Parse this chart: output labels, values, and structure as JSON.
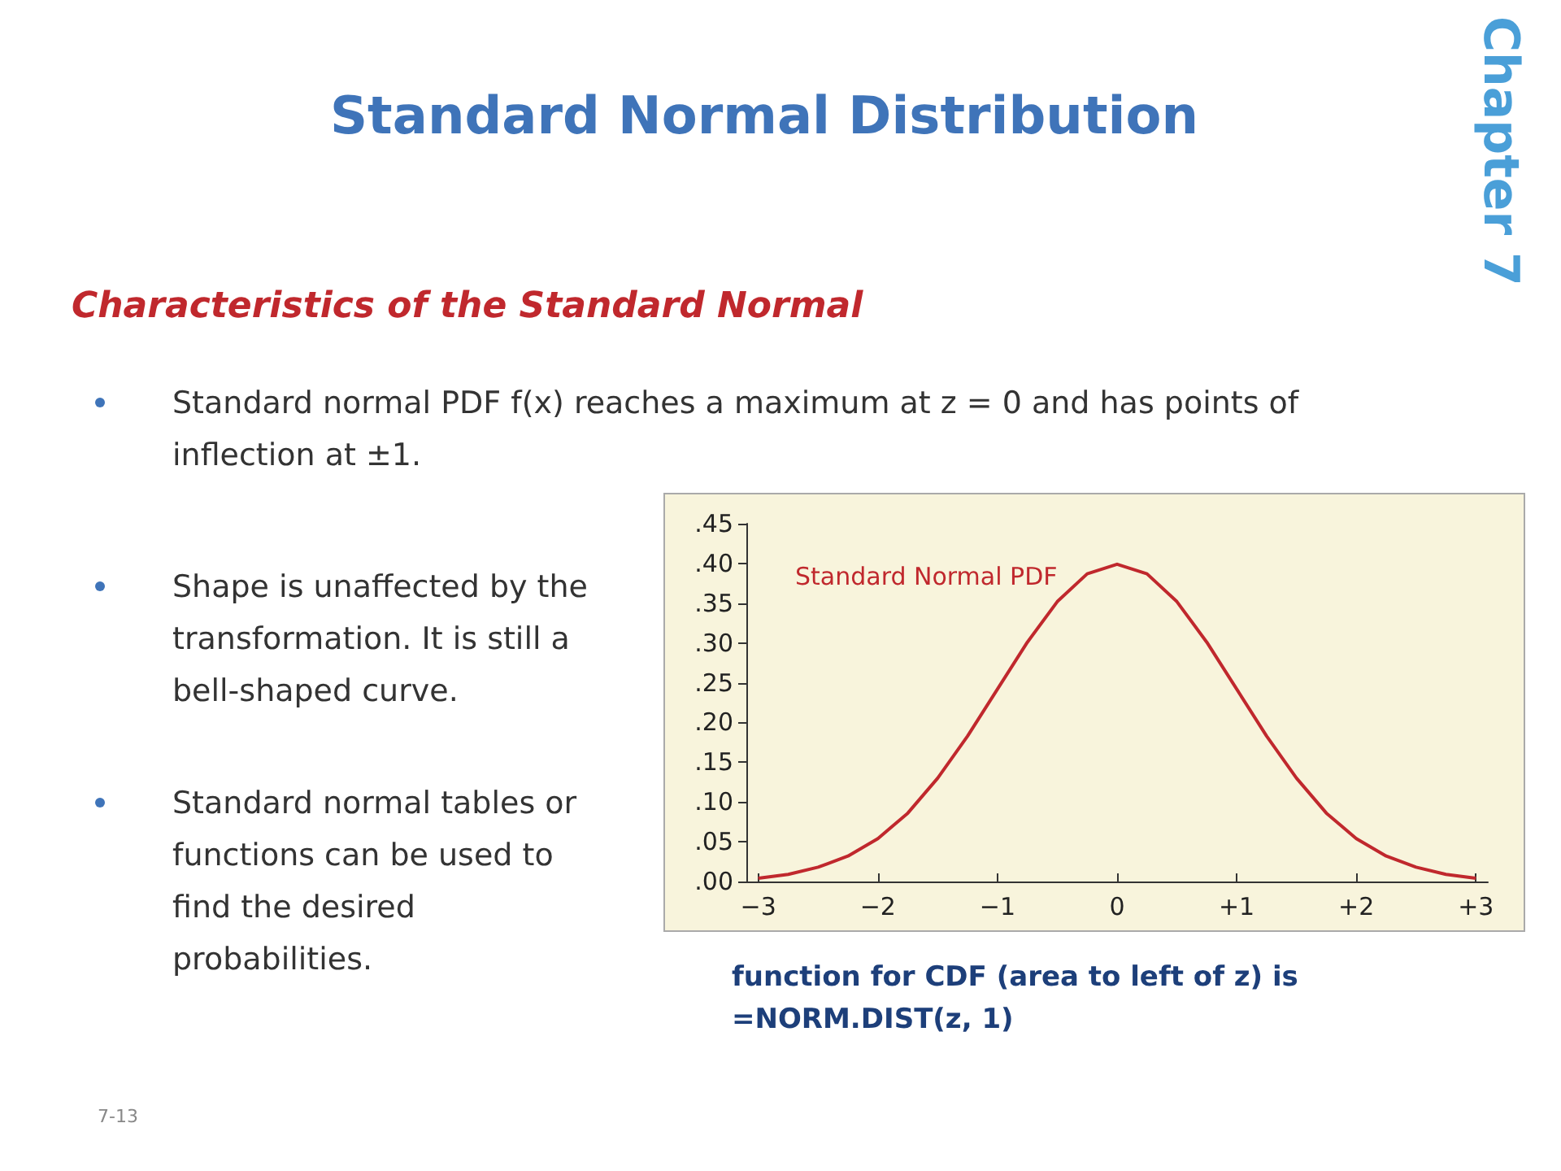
{
  "chart_data": {
    "type": "line",
    "title": "Standard Normal Distribution",
    "subtitle": "Characteristics of the Standard Normal",
    "annotations": [
      "Chapter  7",
      "Standard normal PDF f(x) reaches a maximum at z = 0 and has points of inflection at ±1.",
      "Shape is unaffected by the transformation. It is still a bell-shaped curve.",
      "Standard normal tables or functions can be used to find the desired probabilities.",
      "function for CDF (area to left of z) is =NORM.DIST(z, 1)",
      "7-13"
    ],
    "x": [
      -3,
      -2.75,
      -2.5,
      -2.25,
      -2,
      -1.75,
      -1.5,
      -1.25,
      -1,
      -0.75,
      -0.5,
      -0.25,
      0,
      0.25,
      0.5,
      0.75,
      1,
      1.25,
      1.5,
      1.75,
      2,
      2.25,
      2.5,
      2.75,
      3
    ],
    "series": [
      {
        "name": "Standard Normal PDF",
        "color": "#c0282d",
        "values": [
          0.004,
          0.009,
          0.018,
          0.032,
          0.054,
          0.086,
          0.13,
          0.183,
          0.242,
          0.301,
          0.352,
          0.387,
          0.399,
          0.387,
          0.352,
          0.301,
          0.242,
          0.183,
          0.13,
          0.086,
          0.054,
          0.032,
          0.018,
          0.009,
          0.004
        ]
      }
    ],
    "xlim": [
      -3.1,
      3.1
    ],
    "xticks": [
      {
        "value": -3,
        "label": "−3"
      },
      {
        "value": -2,
        "label": "−2"
      },
      {
        "value": -1,
        "label": "−1"
      },
      0,
      {
        "value": 1,
        "label": "+1"
      },
      {
        "value": 2,
        "label": "+2"
      },
      {
        "value": 3,
        "label": "+3"
      }
    ],
    "ylim": [
      0,
      0.45
    ],
    "yticks": [
      {
        "value": 0,
        "label": ".00"
      },
      {
        "value": 0.05,
        "label": ".05"
      },
      {
        "value": 0.1,
        "label": ".10"
      },
      {
        "value": 0.15,
        "label": ".15"
      },
      {
        "value": 0.2,
        "label": ".20"
      },
      {
        "value": 0.25,
        "label": ".25"
      },
      {
        "value": 0.3,
        "label": ".30"
      },
      {
        "value": 0.35,
        "label": ".35"
      },
      {
        "value": 0.4,
        "label": ".40"
      },
      {
        "value": 0.45,
        "label": ".45"
      }
    ],
    "grid": false,
    "legend": "top left",
    "marker": "none",
    "line_style": "solid"
  }
}
